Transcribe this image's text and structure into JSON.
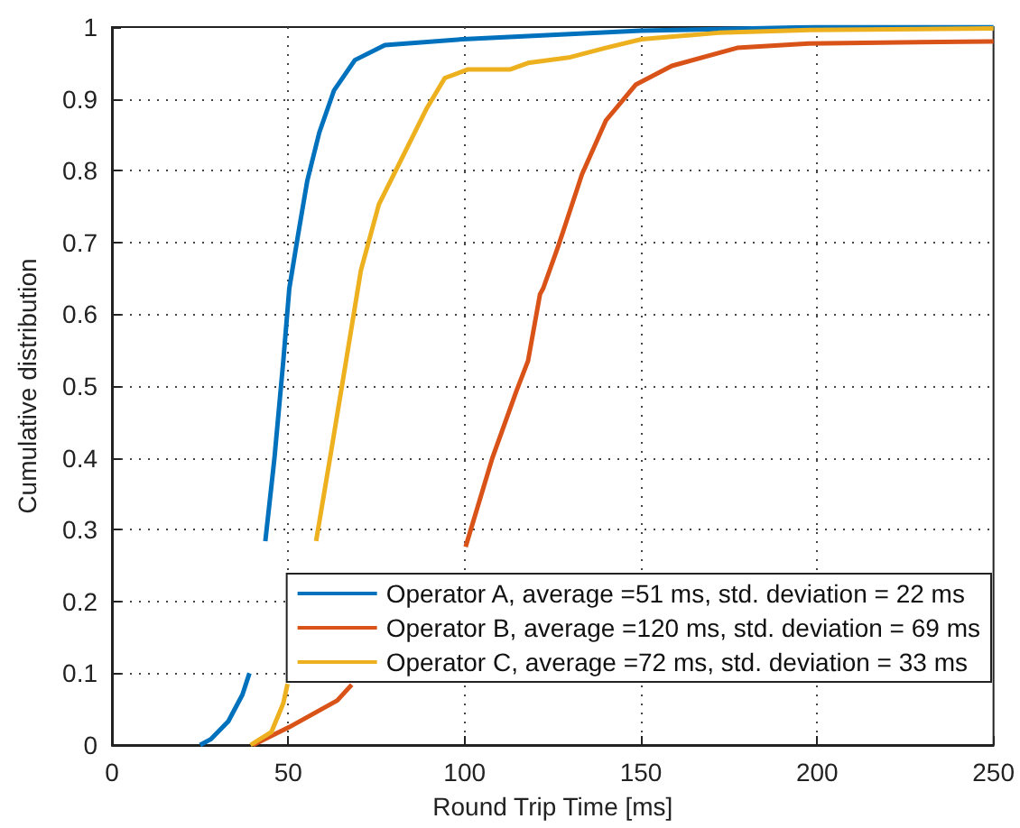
{
  "chart_data": {
    "type": "line",
    "xlabel": "Round Trip Time [ms]",
    "ylabel": "Cumulative distribution",
    "xlim": [
      0,
      250
    ],
    "xticks": [
      0,
      50,
      100,
      150,
      200,
      250
    ],
    "ylim": [
      0,
      1
    ],
    "yticks": [
      0,
      0.1,
      0.2,
      0.3,
      0.4,
      0.5,
      0.6,
      0.7,
      0.8,
      0.9,
      1
    ],
    "grid": true,
    "legend": "bottom right",
    "marker": "none",
    "line_style": "solid",
    "series": [
      {
        "name": "Operator A, average =51 ms, std. deviation = 22 ms",
        "color": "#0072bd",
        "x": [
          25,
          28,
          33,
          37,
          39,
          41,
          43.5,
          46.1,
          48.6,
          50.3,
          52.8,
          55.4,
          58.8,
          63,
          68.9,
          77.4,
          99.4,
          150,
          200,
          250
        ],
        "values": [
          0,
          0.008,
          0.033,
          0.07,
          0.1,
          null,
          0.284,
          0.4,
          0.535,
          0.636,
          0.711,
          0.786,
          0.853,
          0.912,
          0.954,
          0.975,
          0.983,
          0.995,
          1,
          1
        ]
      },
      {
        "name": "Operator B, average =120 ms, std. deviation = 69 ms",
        "color": "#d95319",
        "x": [
          40,
          50.3,
          63.9,
          68,
          86,
          100.3,
          107.9,
          114.7,
          118,
          121.4,
          122.3,
          126.5,
          128.2,
          133.3,
          140.1,
          148.6,
          158.8,
          177.3,
          197.6,
          248.5,
          250
        ],
        "values": [
          0,
          0.025,
          0.062,
          0.084,
          null,
          0.276,
          0.4,
          0.493,
          0.535,
          0.628,
          0.636,
          0.694,
          0.719,
          0.795,
          0.87,
          0.92,
          0.946,
          0.971,
          0.977,
          0.98,
          0.98
        ]
      },
      {
        "name": "Operator C, average =72 ms, std. deviation = 33 ms",
        "color": "#edb120",
        "x": [
          39.3,
          45.2,
          48.6,
          49.8,
          54,
          57.9,
          62.2,
          66.4,
          70.6,
          75.7,
          82.5,
          89.3,
          94.4,
          101,
          113,
          118,
          130,
          140,
          150.2,
          172,
          198,
          250
        ],
        "values": [
          0,
          0.018,
          0.058,
          0.085,
          null,
          0.284,
          0.41,
          0.535,
          0.661,
          0.753,
          0.82,
          0.887,
          0.929,
          0.941,
          0.941,
          0.95,
          0.958,
          0.971,
          0.983,
          0.992,
          0.996,
          0.998
        ]
      }
    ]
  }
}
